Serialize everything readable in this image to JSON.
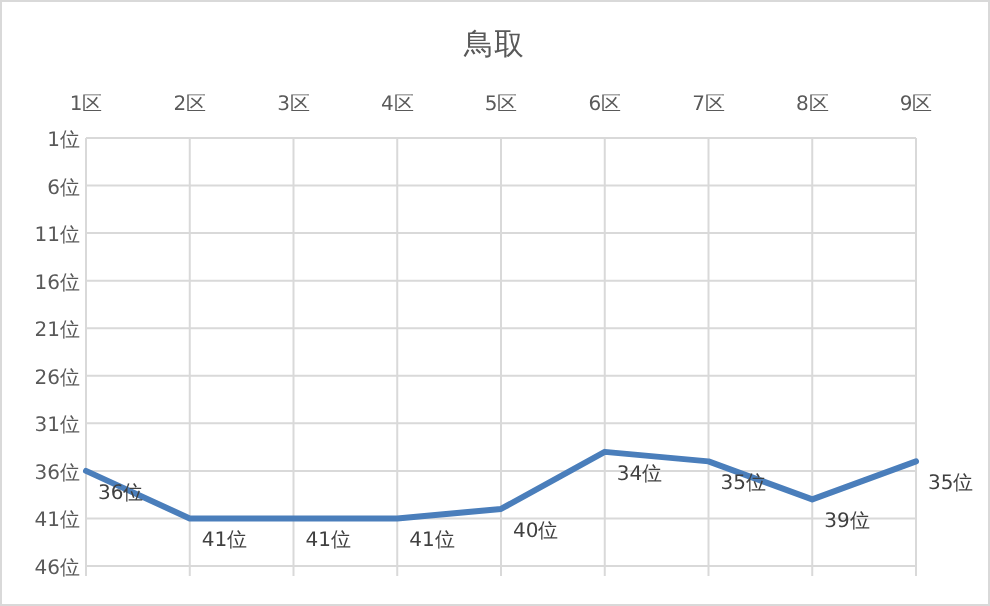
{
  "chart_data": {
    "type": "line",
    "title": "鳥取",
    "categories": [
      "1区",
      "2区",
      "3区",
      "4区",
      "5区",
      "6区",
      "7区",
      "8区",
      "9区"
    ],
    "series": [
      {
        "color": "#4a7ebb",
        "values": [
          36,
          41,
          41,
          41,
          40,
          34,
          35,
          39,
          35
        ],
        "value_labels": [
          "36位",
          "41位",
          "41位",
          "41位",
          "40位",
          "34位",
          "35位",
          "39位",
          "35位"
        ]
      }
    ],
    "ylim": [
      46,
      1
    ],
    "yticks": [
      {
        "value": 1,
        "label": "1位"
      },
      {
        "value": 6,
        "label": "6位"
      },
      {
        "value": 11,
        "label": "11位"
      },
      {
        "value": 16,
        "label": "16位"
      },
      {
        "value": 21,
        "label": "21位"
      },
      {
        "value": 26,
        "label": "26位"
      },
      {
        "value": 31,
        "label": "31位"
      },
      {
        "value": 36,
        "label": "36位"
      },
      {
        "value": 41,
        "label": "41位"
      },
      {
        "value": 46,
        "label": "46位"
      }
    ],
    "grid": true,
    "marker": "none",
    "line_style": "solid"
  }
}
